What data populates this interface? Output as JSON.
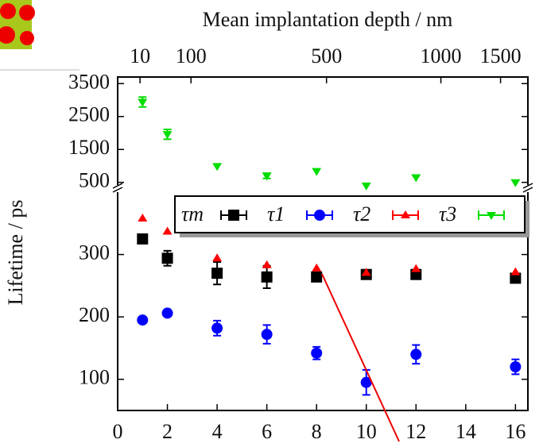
{
  "chart_data": {
    "type": "scatter",
    "title": "Mean implantation depth / nm",
    "ylabel": "Lifetime / ps",
    "xlim": [
      0,
      16.5
    ],
    "xticks": [
      0,
      2,
      4,
      6,
      8,
      10,
      12,
      14,
      16
    ],
    "x2ticks": [
      {
        "value": 0.9,
        "label": "10"
      },
      {
        "value": 2.95,
        "label": "100"
      },
      {
        "value": 8.4,
        "label": "500"
      },
      {
        "value": 13,
        "label": "1000"
      },
      {
        "value": 15.4,
        "label": "1500"
      }
    ],
    "ylim": [
      50,
      400
    ],
    "yticks": [
      100,
      200,
      300
    ],
    "break_ylim": [
      300,
      3700
    ],
    "break_yticks": [
      500,
      1500,
      2500,
      3500
    ],
    "x": [
      1,
      2,
      4,
      6,
      8,
      10,
      12,
      16
    ],
    "series": [
      {
        "name": "τm",
        "color": "#000000",
        "marker": "square",
        "values": [
          325,
          294,
          270,
          264,
          264,
          268,
          268,
          262
        ],
        "errors": [
          null,
          12,
          18,
          18,
          null,
          null,
          null,
          null
        ]
      },
      {
        "name": "τ1",
        "color": "#0000ff",
        "marker": "circle",
        "values": [
          195,
          206,
          182,
          172,
          142,
          95,
          140,
          120
        ],
        "errors": [
          null,
          null,
          12,
          15,
          10,
          20,
          15,
          12
        ]
      },
      {
        "name": "τ2",
        "color": "#ff0000",
        "marker": "triangle-up",
        "values": [
          358,
          337,
          294,
          283,
          278,
          271,
          277,
          272
        ],
        "errors": [
          null,
          null,
          null,
          null,
          null,
          null,
          null,
          null
        ]
      },
      {
        "name": "τ3",
        "color": "#00dd00",
        "marker": "triangle-down",
        "axis": "upper",
        "values": [
          2940,
          1960,
          990,
          700,
          840,
          400,
          650,
          500
        ],
        "errors": [
          150,
          150,
          null,
          80,
          null,
          null,
          null,
          null
        ]
      }
    ]
  }
}
